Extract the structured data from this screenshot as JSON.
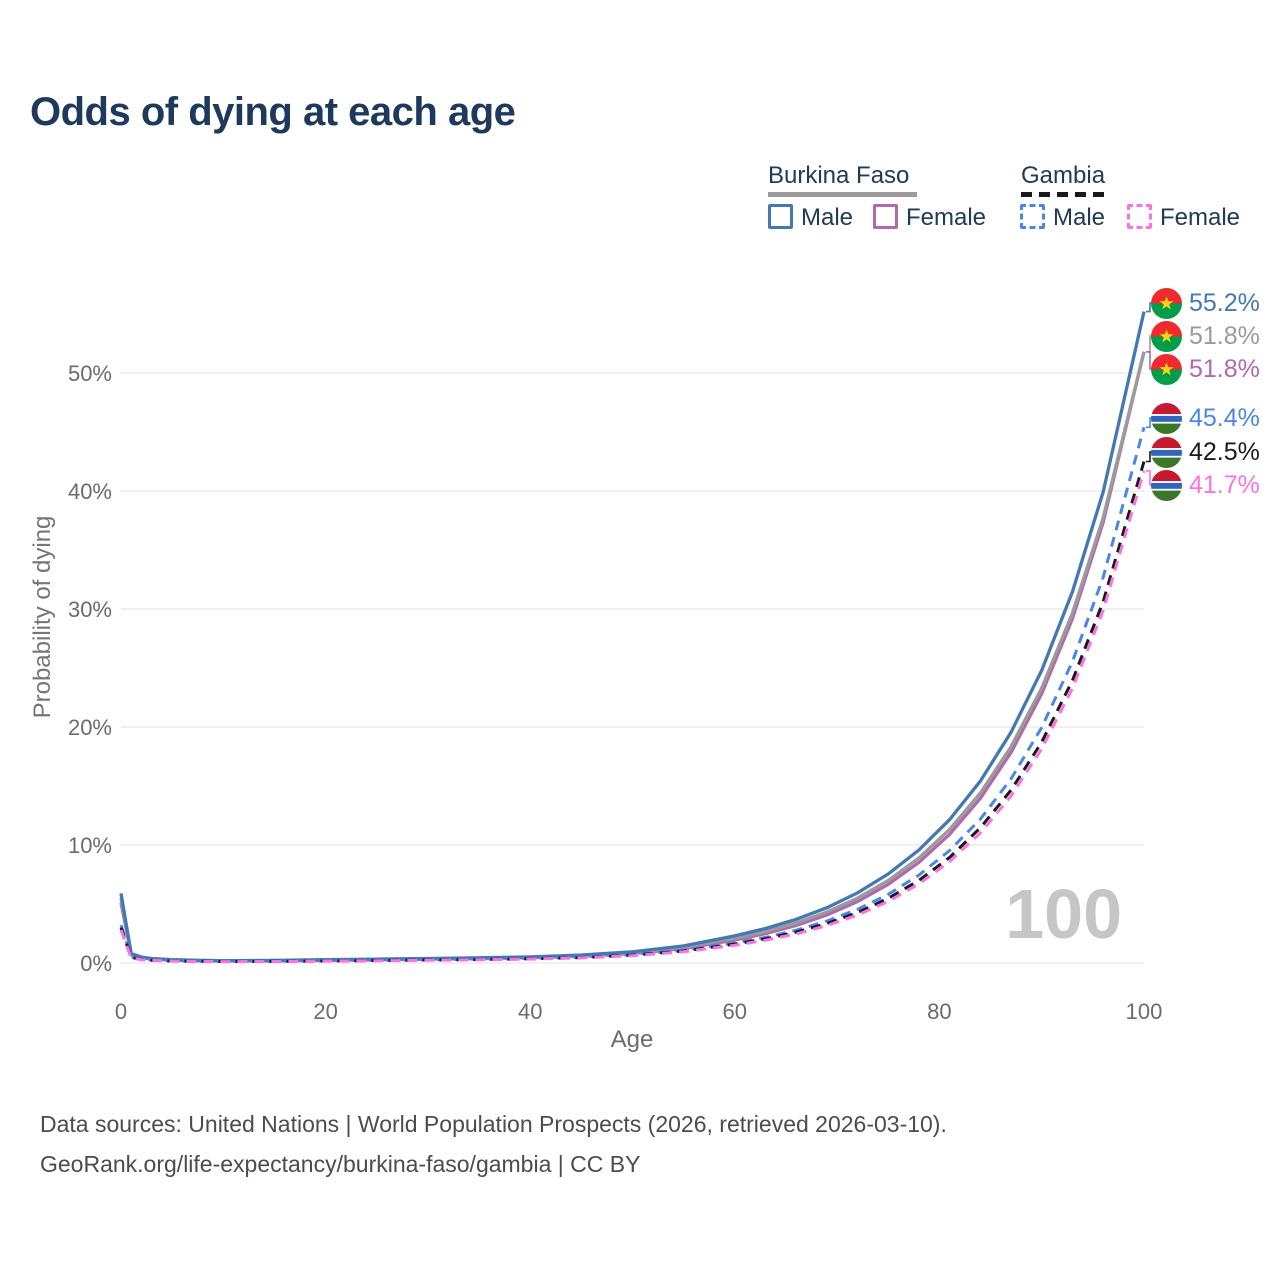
{
  "title": "Odds of dying at each age",
  "watermark": "100",
  "legend": {
    "groups": [
      {
        "name": "Burkina Faso",
        "line_style": "solid",
        "line_color": "#9b9b9b",
        "items": [
          {
            "label": "Male",
            "color": "#4478b5",
            "dashed": false
          },
          {
            "label": "Female",
            "color": "#b168ae",
            "dashed": false
          }
        ]
      },
      {
        "name": "Gambia",
        "line_style": "dashed",
        "line_color": "#1a1a1a",
        "items": [
          {
            "label": "Male",
            "color": "#4a86e8",
            "dashed": true
          },
          {
            "label": "Female",
            "color": "#f973e5",
            "dashed": true
          }
        ]
      }
    ]
  },
  "source": {
    "line1": "Data sources: United Nations | World Population Prospects (2026, retrieved 2026-03-10).",
    "line2": "GeoRank.org/life-expectancy/burkina-faso/gambia | CC BY"
  },
  "chart_data": {
    "type": "line",
    "title": "Odds of dying at each age",
    "xlabel": "Age",
    "ylabel": "Probability of dying",
    "xlim": [
      0,
      100
    ],
    "ylim": [
      0,
      56
    ],
    "xticks": [
      0,
      20,
      40,
      60,
      80,
      100
    ],
    "yticks": [
      0,
      10,
      20,
      30,
      40,
      50
    ],
    "grid": true,
    "legend_position": "top-right",
    "x": [
      0,
      1,
      2,
      3,
      5,
      8,
      10,
      15,
      20,
      25,
      30,
      35,
      40,
      45,
      50,
      55,
      60,
      63,
      66,
      69,
      72,
      75,
      78,
      81,
      84,
      87,
      90,
      93,
      96,
      100
    ],
    "series": [
      {
        "name": "Burkina Faso Male",
        "flag": "burkina-faso",
        "color": "#4478b5",
        "dash": "solid",
        "end_label": "55.2%",
        "values": [
          5.9,
          0.8,
          0.5,
          0.38,
          0.28,
          0.22,
          0.2,
          0.22,
          0.28,
          0.33,
          0.38,
          0.44,
          0.52,
          0.68,
          0.95,
          1.45,
          2.3,
          2.92,
          3.7,
          4.69,
          5.95,
          7.55,
          9.58,
          12.15,
          15.41,
          19.55,
          24.8,
          31.45,
          39.9,
          55.2
        ]
      },
      {
        "name": "Burkina Faso",
        "flag": "burkina-faso",
        "color": "#9b9b9b",
        "dash": "solid",
        "end_label": "51.8%",
        "values": [
          5.5,
          0.75,
          0.47,
          0.36,
          0.26,
          0.2,
          0.19,
          0.2,
          0.25,
          0.3,
          0.35,
          0.4,
          0.48,
          0.62,
          0.88,
          1.33,
          2.1,
          2.67,
          3.4,
          4.32,
          5.5,
          7.0,
          8.9,
          11.32,
          14.4,
          18.32,
          23.3,
          29.65,
          37.71,
          51.8
        ]
      },
      {
        "name": "Burkina Faso Female",
        "flag": "burkina-faso",
        "color": "#b168ae",
        "dash": "solid",
        "end_label": "51.8%",
        "values": [
          5.1,
          0.7,
          0.44,
          0.34,
          0.25,
          0.19,
          0.18,
          0.19,
          0.23,
          0.27,
          0.32,
          0.37,
          0.45,
          0.58,
          0.8,
          1.22,
          1.95,
          2.49,
          3.19,
          4.08,
          5.21,
          6.67,
          8.53,
          10.91,
          13.95,
          17.84,
          22.82,
          29.18,
          37.32,
          51.8
        ]
      },
      {
        "name": "Gambia Male",
        "flag": "gambia",
        "color": "#4a86e8",
        "dash": "dashed",
        "end_label": "45.4%",
        "values": [
          3.2,
          0.5,
          0.32,
          0.25,
          0.19,
          0.15,
          0.14,
          0.15,
          0.19,
          0.23,
          0.27,
          0.32,
          0.39,
          0.5,
          0.72,
          1.08,
          1.7,
          2.17,
          2.78,
          3.56,
          4.55,
          5.82,
          7.45,
          9.53,
          12.19,
          15.6,
          19.96,
          25.53,
          32.66,
          45.4
        ]
      },
      {
        "name": "Gambia",
        "flag": "gambia",
        "color": "#1a1a1a",
        "dash": "dashed",
        "end_label": "42.5%",
        "values": [
          3.0,
          0.47,
          0.3,
          0.23,
          0.17,
          0.14,
          0.13,
          0.14,
          0.17,
          0.21,
          0.25,
          0.29,
          0.36,
          0.46,
          0.67,
          1.02,
          1.6,
          2.05,
          2.62,
          3.35,
          4.28,
          5.48,
          7.0,
          8.95,
          11.45,
          14.64,
          18.72,
          23.94,
          30.61,
          42.5
        ]
      },
      {
        "name": "Gambia Female",
        "flag": "gambia",
        "color": "#f973e5",
        "dash": "dashed",
        "end_label": "41.7%",
        "values": [
          2.8,
          0.44,
          0.28,
          0.22,
          0.16,
          0.13,
          0.12,
          0.13,
          0.16,
          0.19,
          0.23,
          0.27,
          0.33,
          0.43,
          0.62,
          0.96,
          1.5,
          1.93,
          2.47,
          3.17,
          4.07,
          5.22,
          6.7,
          8.59,
          11.02,
          14.14,
          18.14,
          23.27,
          29.86,
          41.7
        ]
      }
    ],
    "flag_colors": {
      "burkina_faso": {
        "red": "#ef2b2d",
        "green": "#009e49",
        "star_yellow": "#fcd116"
      },
      "gambia": {
        "red": "#c51a32",
        "blue": "#2f66bb",
        "green": "#3a7728",
        "white": "#ffffff"
      }
    }
  }
}
